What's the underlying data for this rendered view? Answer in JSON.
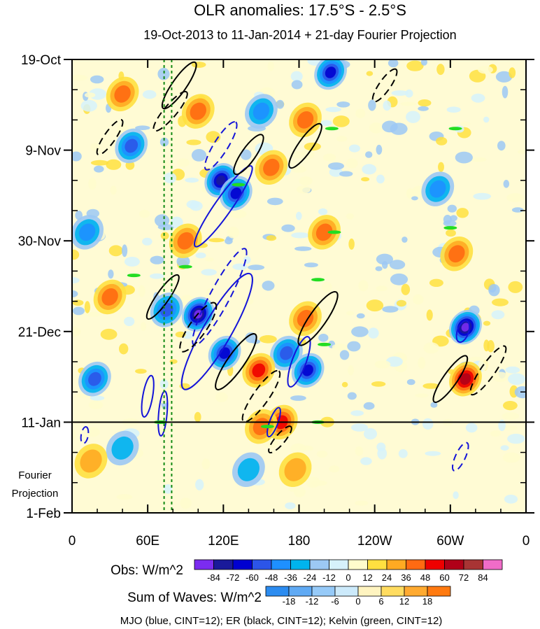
{
  "chart_data": {
    "type": "heatmap",
    "title": "OLR anomalies: 17.5°S - 2.5°S",
    "subtitle": "19-Oct-2013 to 11-Jan-2014 + 21-day Fourier Projection",
    "x_ticks": [
      "0",
      "60E",
      "120E",
      "180",
      "120W",
      "60W",
      "0"
    ],
    "x_tick_lon": [
      0,
      60,
      120,
      180,
      240,
      300,
      360
    ],
    "xlim": [
      0,
      360
    ],
    "y_ticks": [
      "19-Oct",
      "9-Nov",
      "30-Nov",
      "21-Dec",
      "11-Jan",
      "1-Feb"
    ],
    "y_tick_day": [
      0,
      21,
      42,
      63,
      84,
      105
    ],
    "ylim_days": [
      0,
      105
    ],
    "projection_start_day": 84,
    "projection_label": [
      "Fourier",
      "Projection"
    ],
    "reference_lines_lon": [
      73,
      79
    ],
    "obs_colorbar": {
      "label": "Obs: W/m^2",
      "tick_labels": [
        "-84",
        "-72",
        "-60",
        "-48",
        "-36",
        "-24",
        "-12",
        "0",
        "12",
        "24",
        "36",
        "48",
        "60",
        "72",
        "84"
      ],
      "colors": [
        "#7b2cf0",
        "#1a1a9a",
        "#0000d0",
        "#2c55e8",
        "#1e90ff",
        "#00b4ee",
        "#9cc8f4",
        "#d6f2fb",
        "#fffccc",
        "#ffe040",
        "#ffaa22",
        "#ff6a12",
        "#ee0000",
        "#b00018",
        "#a83434",
        "#f06cc8"
      ]
    },
    "waves_colorbar": {
      "label": "Sum of Waves: W/m^2",
      "tick_labels": [
        "-18",
        "-12",
        "-6",
        "0",
        "6",
        "12",
        "18"
      ],
      "colors": [
        "#2c8cf0",
        "#60aaf4",
        "#96caf8",
        "#cceafb",
        "#fff4c0",
        "#ffdc60",
        "#ffaa30",
        "#ff7a10"
      ]
    },
    "footer": "MJO (blue, CINT=12); ER (black, CINT=12); Kelvin (green, CINT=12)",
    "wave_colors": {
      "MJO": "#1414d8",
      "ER": "#000000",
      "Kelvin": "#22dd22"
    },
    "negative_blobs": [
      {
        "lon": 47,
        "day": 20,
        "amp": -48
      },
      {
        "lon": 100,
        "day": 59,
        "amp": -80
      },
      {
        "lon": 118,
        "day": 28,
        "amp": -70
      },
      {
        "lon": 130,
        "day": 31,
        "amp": -60
      },
      {
        "lon": 121,
        "day": 68,
        "amp": -60
      },
      {
        "lon": 170,
        "day": 68,
        "amp": -45
      },
      {
        "lon": 187,
        "day": 72,
        "amp": -55
      },
      {
        "lon": 312,
        "day": 62,
        "amp": -80
      },
      {
        "lon": 18,
        "day": 74,
        "amp": -40
      },
      {
        "lon": 150,
        "day": 12,
        "amp": -35
      },
      {
        "lon": 205,
        "day": 3,
        "amp": -50
      },
      {
        "lon": 40,
        "day": 90,
        "amp": -20
      },
      {
        "lon": 140,
        "day": 95,
        "amp": -20
      },
      {
        "lon": 75,
        "day": 58,
        "amp": -45
      },
      {
        "lon": 290,
        "day": 30,
        "amp": -35
      },
      {
        "lon": 12,
        "day": 40,
        "amp": -30
      }
    ],
    "positive_blobs": [
      {
        "lon": 148,
        "day": 72,
        "amp": 45
      },
      {
        "lon": 166,
        "day": 84,
        "amp": 40
      },
      {
        "lon": 312,
        "day": 74,
        "amp": 50
      },
      {
        "lon": 185,
        "day": 60,
        "amp": 35
      },
      {
        "lon": 100,
        "day": 12,
        "amp": 30
      },
      {
        "lon": 158,
        "day": 25,
        "amp": 30
      },
      {
        "lon": 185,
        "day": 14,
        "amp": 25
      },
      {
        "lon": 150,
        "day": 85,
        "amp": 30
      },
      {
        "lon": 177,
        "day": 95,
        "amp": 20
      },
      {
        "lon": 305,
        "day": 45,
        "amp": 25
      },
      {
        "lon": 90,
        "day": 42,
        "amp": 25
      },
      {
        "lon": 30,
        "day": 55,
        "amp": 25
      },
      {
        "lon": 40,
        "day": 8,
        "amp": 30
      },
      {
        "lon": 200,
        "day": 40,
        "amp": 25
      },
      {
        "lon": 15,
        "day": 93,
        "amp": 15
      }
    ]
  }
}
